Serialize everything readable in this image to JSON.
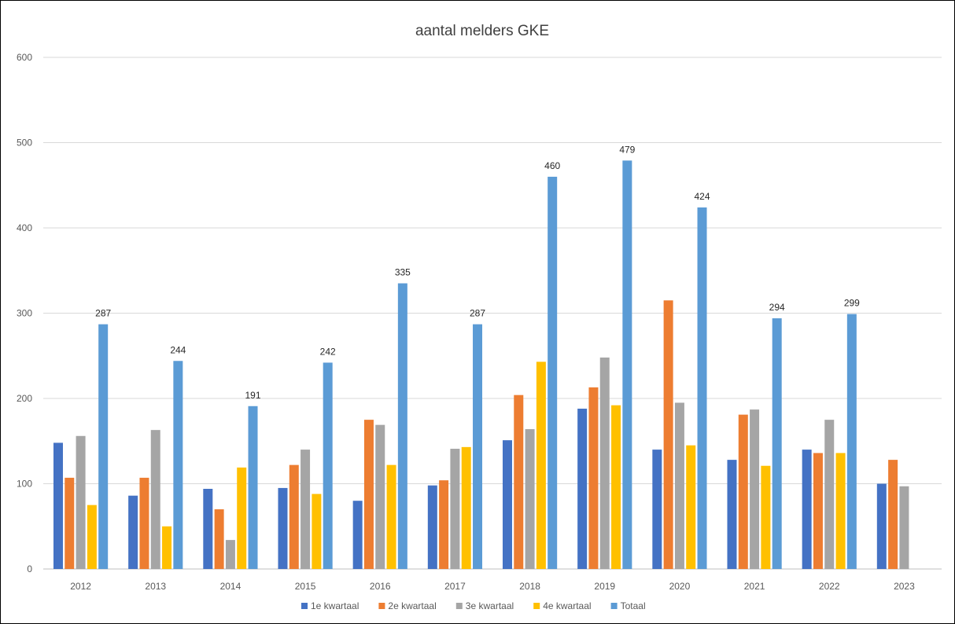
{
  "chart_data": {
    "type": "bar",
    "title": "aantal melders GKE",
    "xlabel": "",
    "ylabel": "",
    "ylim": [
      0,
      600
    ],
    "yticks": [
      0,
      100,
      200,
      300,
      400,
      500,
      600
    ],
    "grid": true,
    "legend_position": "bottom",
    "categories": [
      "2012",
      "2013",
      "2014",
      "2015",
      "2016",
      "2017",
      "2018",
      "2019",
      "2020",
      "2021",
      "2022",
      "2023"
    ],
    "series": [
      {
        "name": "1e kwartaal",
        "color": "#4472C4",
        "values": [
          148,
          86,
          94,
          95,
          80,
          98,
          151,
          188,
          140,
          128,
          140,
          100
        ]
      },
      {
        "name": "2e kwartaal",
        "color": "#ED7D31",
        "values": [
          107,
          107,
          70,
          122,
          175,
          104,
          204,
          213,
          315,
          181,
          136,
          128
        ]
      },
      {
        "name": "3e kwartaal",
        "color": "#A5A5A5",
        "values": [
          156,
          163,
          34,
          140,
          169,
          141,
          164,
          248,
          195,
          187,
          175,
          97
        ]
      },
      {
        "name": "4e kwartaal",
        "color": "#FFC000",
        "values": [
          75,
          50,
          119,
          88,
          122,
          143,
          243,
          192,
          145,
          121,
          136,
          null
        ]
      },
      {
        "name": "Totaal",
        "color": "#5B9BD5",
        "values": [
          287,
          244,
          191,
          242,
          335,
          287,
          460,
          479,
          424,
          294,
          299,
          null
        ]
      }
    ],
    "data_labels": {
      "series": "Totaal",
      "values": [
        "287",
        "244",
        "191",
        "242",
        "335",
        "287",
        "460",
        "479",
        "424",
        "294",
        "299",
        ""
      ]
    }
  }
}
